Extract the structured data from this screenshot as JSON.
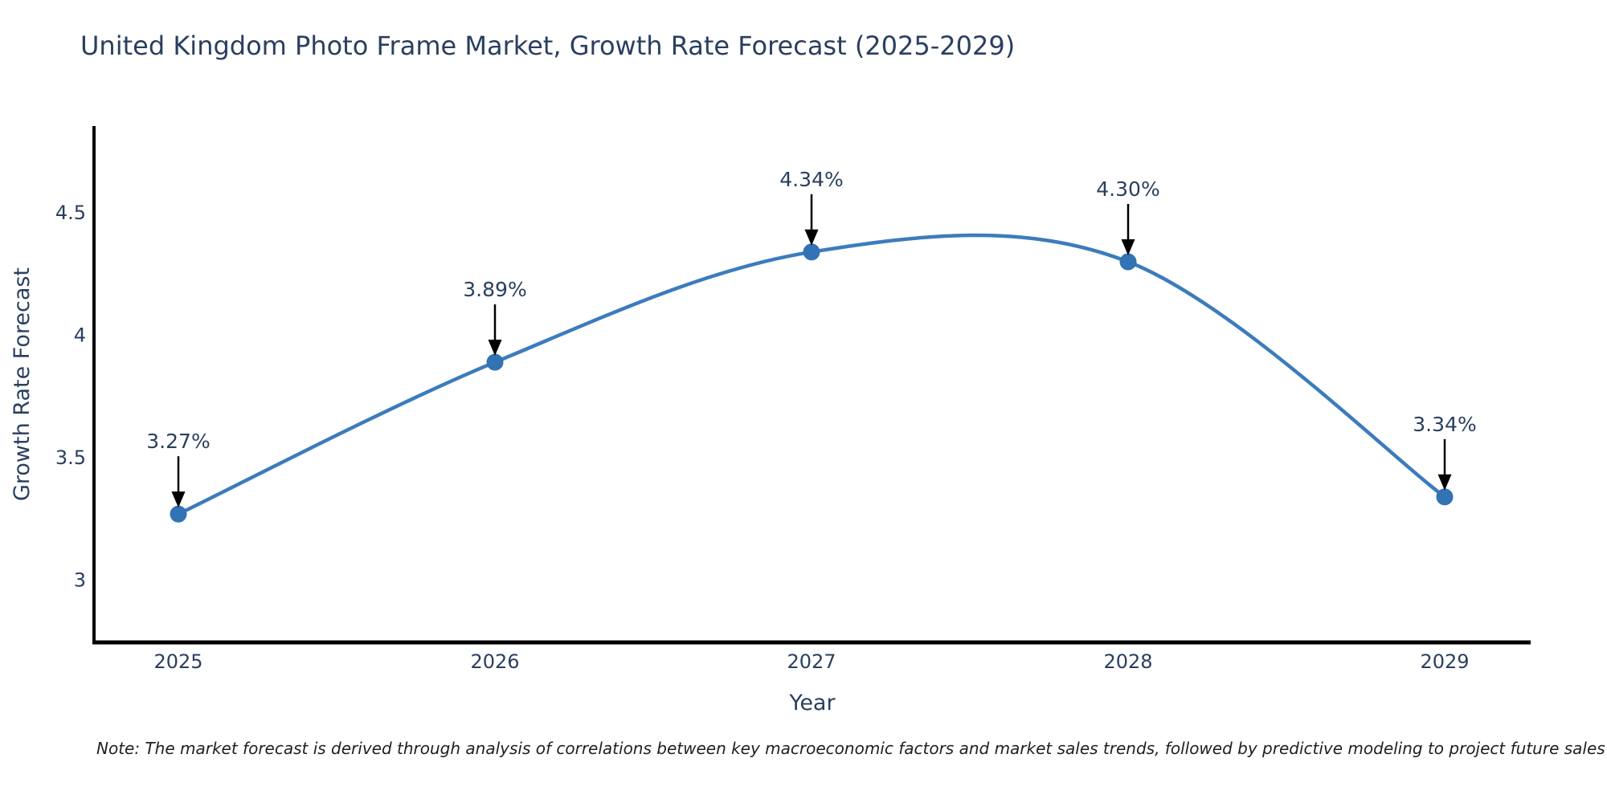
{
  "title": "United Kingdom Photo Frame Market, Growth Rate Forecast (2025-2029)",
  "footnote": "Note: The market forecast is derived through analysis of correlations between key macroeconomic factors and market sales trends, followed by predictive modeling to project future sales",
  "chart_data": {
    "type": "line",
    "title": "United Kingdom Photo Frame Market, Growth Rate Forecast (2025-2029)",
    "categories": [
      "2025",
      "2026",
      "2027",
      "2028",
      "2029"
    ],
    "series": [
      {
        "name": "Growth Rate Forecast",
        "values": [
          3.27,
          3.89,
          4.34,
          4.3,
          3.34
        ],
        "point_labels": [
          "3.27%",
          "3.89%",
          "4.34%",
          "4.30%",
          "3.34%"
        ]
      }
    ],
    "xlabel": "Year",
    "ylabel": "Growth Rate Forecast",
    "ytick_values": [
      4.5,
      4,
      3.5,
      3
    ],
    "ytick_labels": [
      "4.5",
      "4",
      "3.5",
      "3"
    ],
    "ylim": [
      2.87,
      4.68
    ],
    "grid": false,
    "legend": "none",
    "smooth": true,
    "annotations": "value labels above each point with downward black arrows"
  },
  "colors": {
    "line": "#3c7cbc",
    "marker": "#3173b3",
    "axis_spine": "#000000",
    "text": "#2a3f5f",
    "arrow": "#000000",
    "note_text": "#1f1f1f",
    "background": "#ffffff"
  }
}
